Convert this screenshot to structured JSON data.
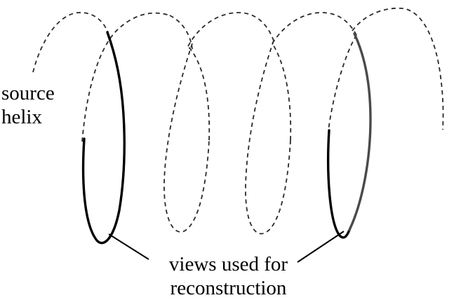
{
  "labels": {
    "source_line1": "source",
    "source_line2": "helix",
    "views_line1": "views used for",
    "views_line2": "reconstruction"
  },
  "colors": {
    "helix_dashed": "#2a2a2a",
    "view_stroke": "#000000",
    "view_stroke_second": "#4a4a4a",
    "leader_line": "#000000"
  }
}
